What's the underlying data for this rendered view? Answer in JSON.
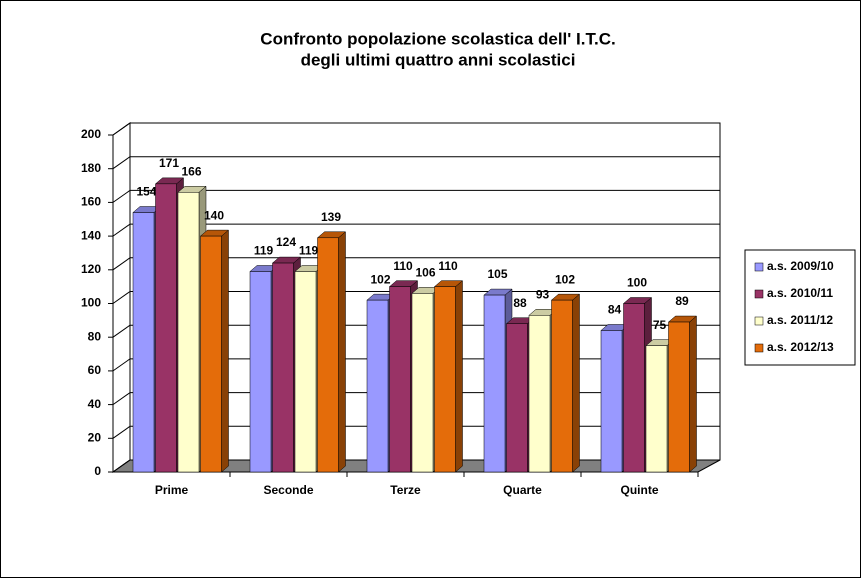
{
  "chart_data": {
    "type": "bar3d",
    "title": [
      "Confronto popolazione scolastica dell' I.T.C.",
      "degli ultimi quattro anni scolastici"
    ],
    "categories": [
      "Prime",
      "Seconde",
      "Terze",
      "Quarte",
      "Quinte"
    ],
    "series": [
      {
        "name": "a.s. 2009/10",
        "color": "#9999ff",
        "values": [
          154,
          119,
          102,
          105,
          84
        ]
      },
      {
        "name": "a.s. 2010/11",
        "color": "#993366",
        "values": [
          171,
          124,
          110,
          88,
          100
        ]
      },
      {
        "name": "a.s. 2011/12",
        "color": "#ffffcc",
        "values": [
          166,
          119,
          106,
          93,
          75
        ]
      },
      {
        "name": "a.s. 2012/13",
        "color": "#e46c0a",
        "values": [
          140,
          139,
          110,
          102,
          89
        ]
      }
    ],
    "ylim": [
      0,
      200
    ],
    "yticks": [
      0,
      20,
      40,
      60,
      80,
      100,
      120,
      140,
      160,
      180,
      200
    ],
    "grid": true,
    "legend": "right"
  }
}
